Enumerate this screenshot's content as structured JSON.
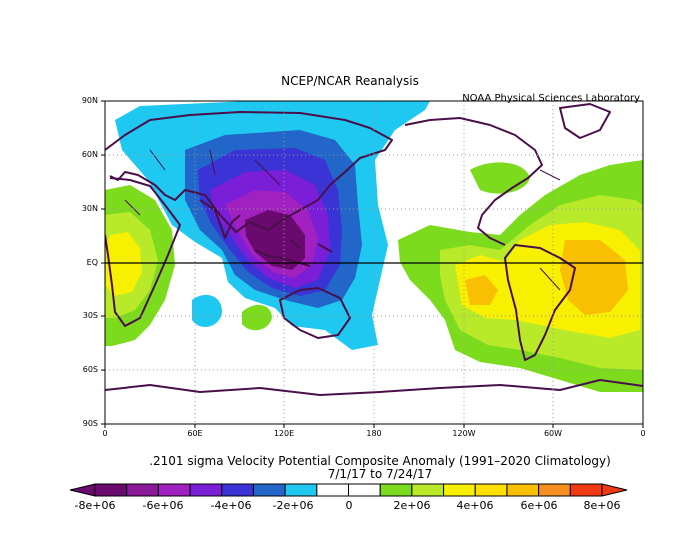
{
  "header": {
    "title": "NCEP/NCAR Reanalysis",
    "lab": "NOAA Physical Sciences Laboratory"
  },
  "axes": {
    "lat_labels": [
      "90N",
      "60N",
      "30N",
      "EQ",
      "30S",
      "60S",
      "90S"
    ],
    "lon_labels": [
      "0",
      "60E",
      "120E",
      "180",
      "120W",
      "60W",
      "0"
    ]
  },
  "caption": {
    "line1": ".2101 sigma Velocity Potential  Composite Anomaly (1991–2020 Climatology)",
    "line2": "7/1/17  to 7/24/17"
  },
  "colorbar": {
    "labels": [
      "-8e+06",
      "-6e+06",
      "-4e+06",
      "-2e+06",
      "0",
      "2e+06",
      "4e+06",
      "6e+06",
      "8e+06"
    ],
    "colors": [
      "#6a0a6e",
      "#8a1a9a",
      "#a020c0",
      "#7a1ed8",
      "#3a33d6",
      "#2166c8",
      "#1ec8f0",
      "#ffffff",
      "#ffffff",
      "#7ddb1e",
      "#b8ea2a",
      "#f7f000",
      "#fde000",
      "#f8c000",
      "#f59020",
      "#f03a14"
    ]
  },
  "map": {
    "projection": "cylindrical equidistant",
    "lon_range": [
      "0",
      "360"
    ],
    "lat_range": [
      "90S",
      "90N"
    ],
    "grid": true,
    "fill_colors": {
      "neg_weak": "#1ec8f0",
      "neg_mod": "#2166c8",
      "neg_strong": "#3a33d6",
      "neg_stronger": "#7a1ed8",
      "neg_max": "#6a0a6e",
      "pos_weak": "#7ddb1e",
      "pos_mod": "#b8ea2a",
      "pos_strong": "#f7f000",
      "pos_max": "#f8c000",
      "coast": "#4a0f4a"
    }
  }
}
